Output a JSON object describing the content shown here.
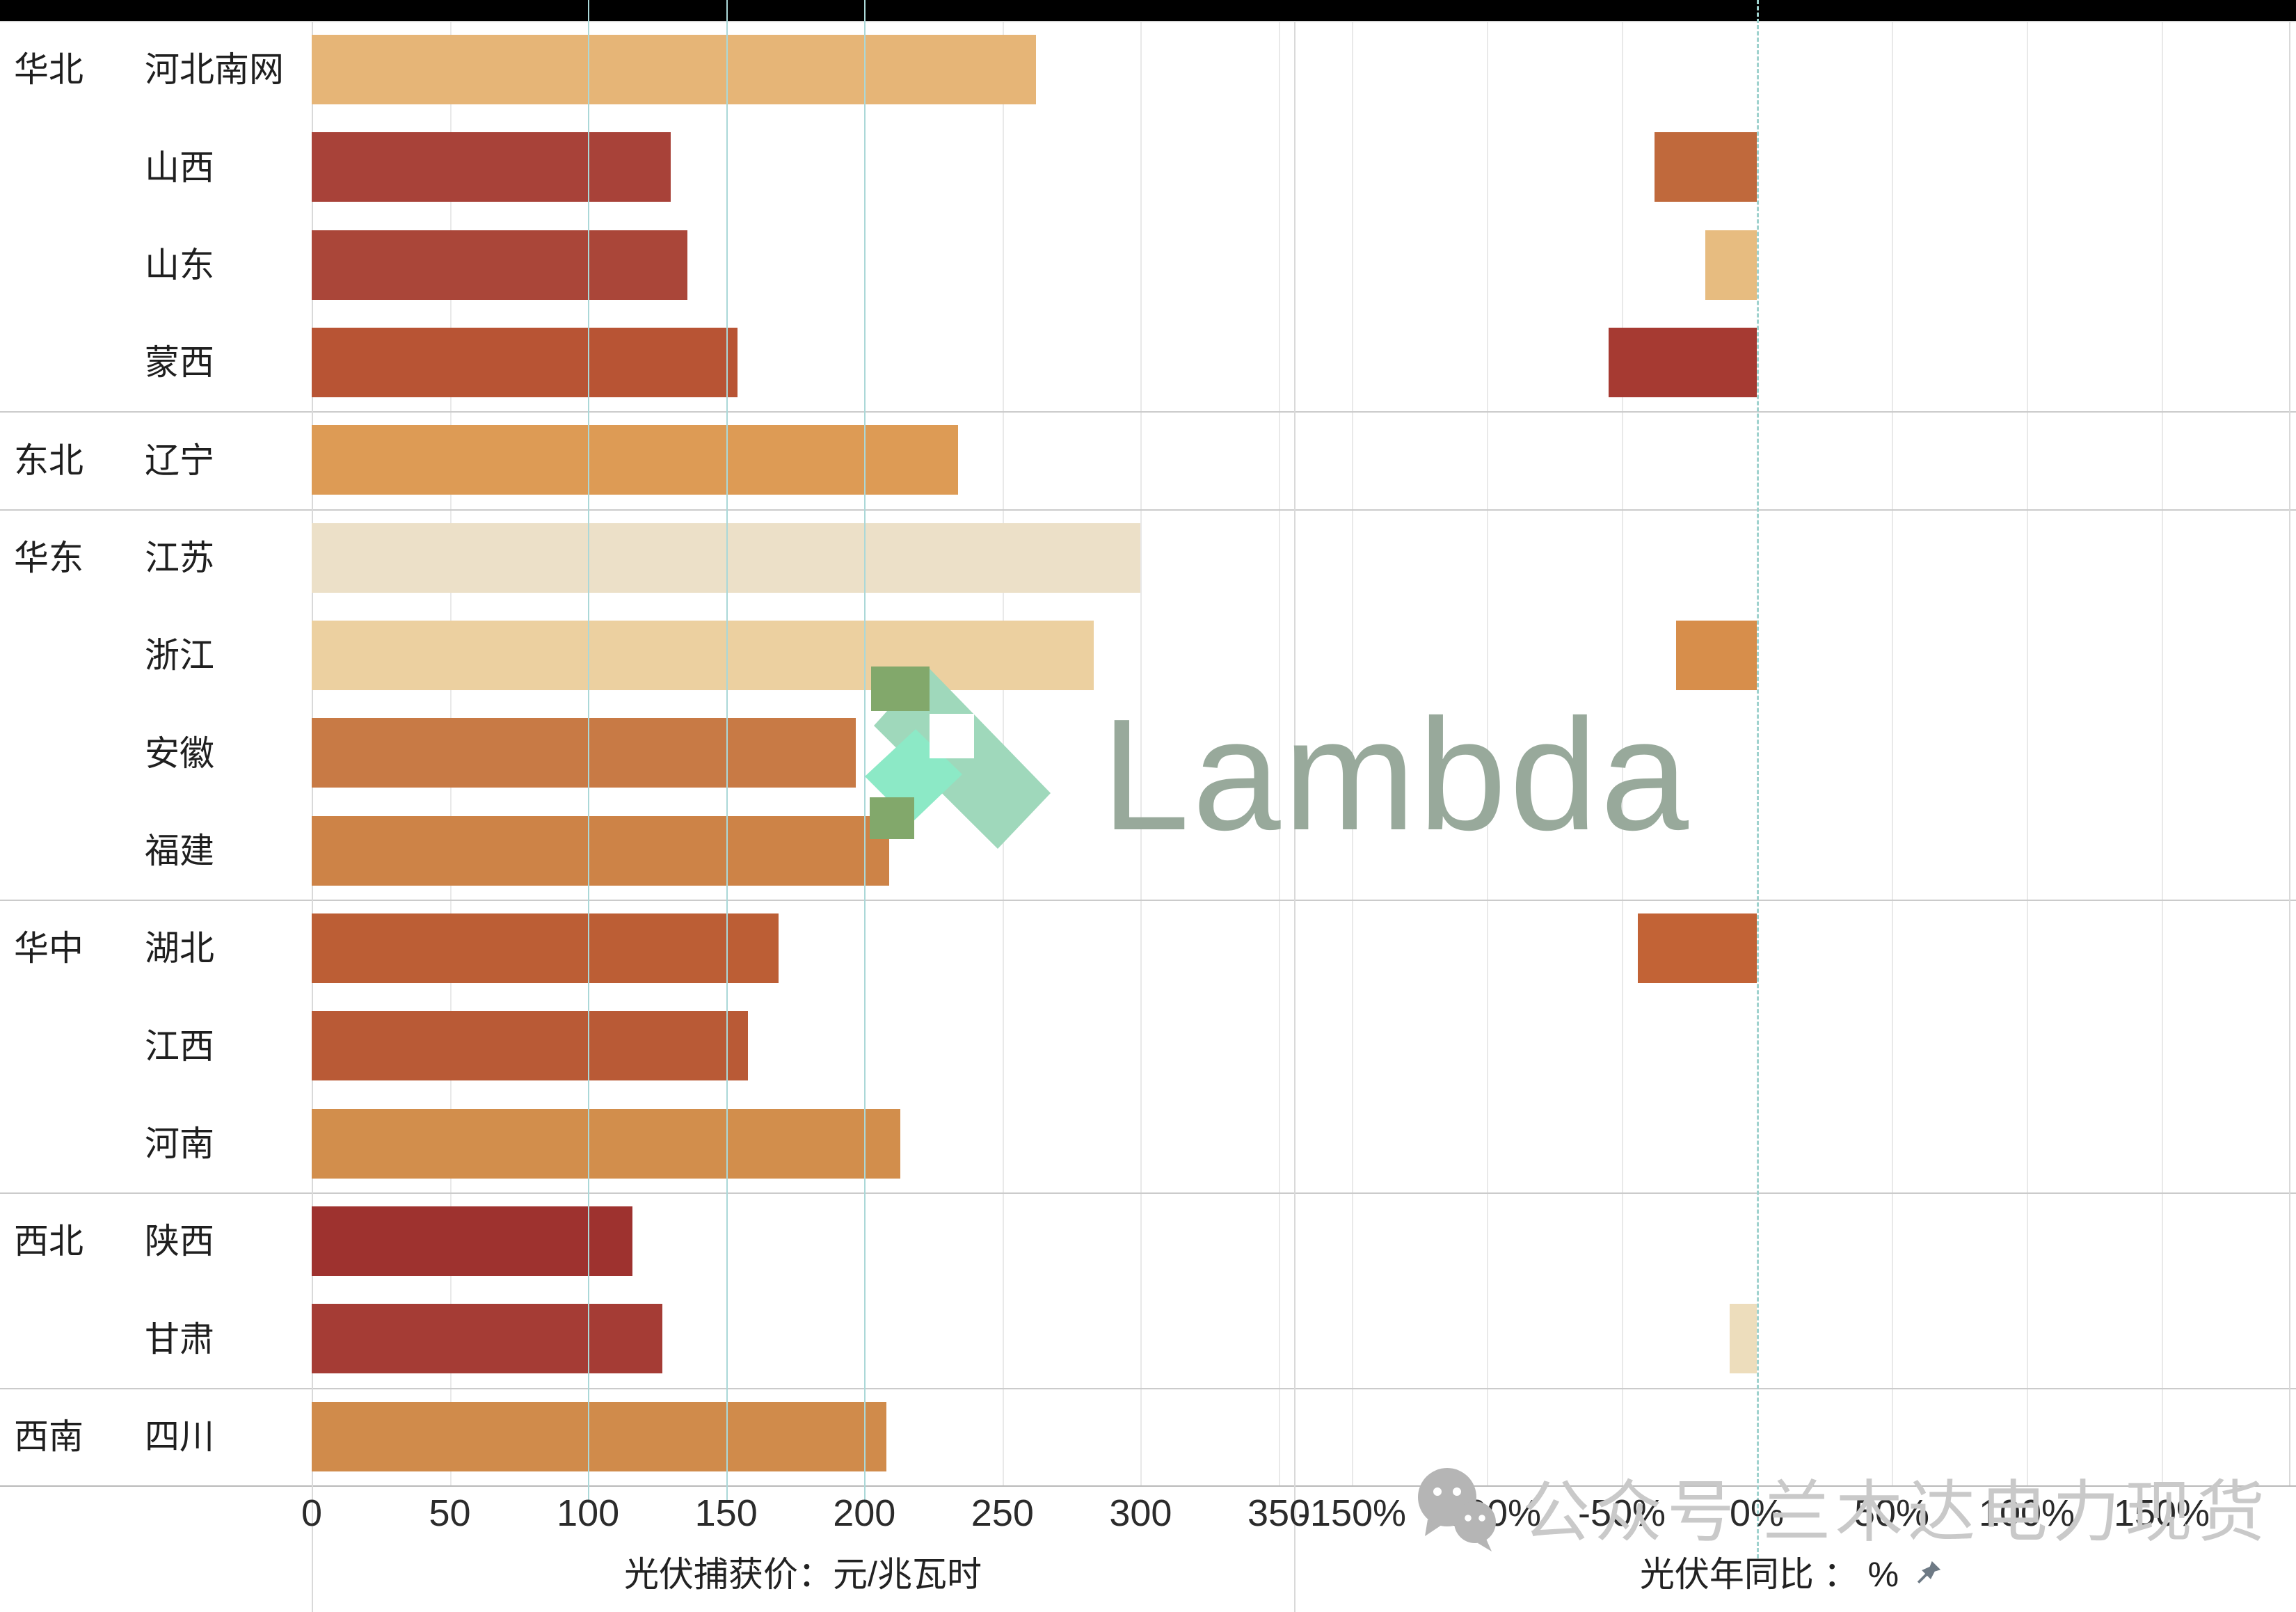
{
  "page": {
    "top_strip_color": "#000000",
    "background": "#ffffff"
  },
  "row_groups": [
    {
      "label": "华北",
      "start_row": 0
    },
    {
      "label": "东北",
      "start_row": 4
    },
    {
      "label": "华东",
      "start_row": 5
    },
    {
      "label": "华中",
      "start_row": 9
    },
    {
      "label": "西北",
      "start_row": 12
    },
    {
      "label": "西南",
      "start_row": 14
    }
  ],
  "chart_data": [
    {
      "type": "bar",
      "orientation": "horizontal",
      "title": "光伏捕获价：元/兆瓦时",
      "categories": [
        "河北南网",
        "山西",
        "山东",
        "蒙西",
        "辽宁",
        "江苏",
        "浙江",
        "安徽",
        "福建",
        "湖北",
        "江西",
        "河南",
        "陕西",
        "甘肃",
        "四川"
      ],
      "group_labels": [
        "华北",
        "华北",
        "华北",
        "华北",
        "东北",
        "华东",
        "华东",
        "华东",
        "华东",
        "华中",
        "华中",
        "华中",
        "西北",
        "西北",
        "西南"
      ],
      "values": [
        262,
        130,
        136,
        154,
        234,
        300,
        283,
        197,
        209,
        169,
        158,
        213,
        116,
        127,
        208
      ],
      "bar_colors": [
        "#e6b577",
        "#a84239",
        "#aa4639",
        "#b85434",
        "#dd9b55",
        "#ece0c8",
        "#ecd0a0",
        "#c87a45",
        "#cd8347",
        "#bc5e35",
        "#b95a36",
        "#d28e4c",
        "#9e322f",
        "#a53c35",
        "#d08b4b"
      ],
      "xlim": [
        0,
        356
      ],
      "ticks": [
        0,
        50,
        100,
        150,
        200,
        250,
        300,
        350
      ],
      "tick_labels": [
        "0",
        "50",
        "100",
        "150",
        "200",
        "250",
        "300",
        "350"
      ],
      "gridlines_gray": [
        50,
        250,
        300,
        350
      ],
      "gridlines_teal": [
        100,
        150,
        200
      ],
      "grid": true,
      "legend": false
    },
    {
      "type": "bar",
      "orientation": "horizontal",
      "title": "光伏年同比 ： %",
      "categories": [
        "河北南网",
        "山西",
        "山东",
        "蒙西",
        "辽宁",
        "江苏",
        "浙江",
        "安徽",
        "福建",
        "湖北",
        "江西",
        "河南",
        "陕西",
        "甘肃",
        "四川"
      ],
      "values": [
        null,
        -38,
        -19,
        -55,
        null,
        null,
        -30,
        null,
        null,
        -44,
        null,
        null,
        null,
        -10,
        null
      ],
      "bar_colors": [
        null,
        "#c0693c",
        "#e7bc80",
        "#a63a32",
        null,
        null,
        "#d78e4b",
        null,
        null,
        "#c26336",
        null,
        null,
        null,
        "#edddbc",
        null
      ],
      "xlim": [
        -171,
        197
      ],
      "ticks": [
        -150,
        -100,
        -50,
        0,
        50,
        100,
        150
      ],
      "tick_labels": [
        "-150%",
        "-100%",
        "-50%",
        "0%",
        "50%",
        "100%",
        "150%"
      ],
      "gridlines_gray": [
        -150,
        -100,
        -50,
        50,
        100,
        150
      ],
      "zero_reference_line": 0,
      "grid": true,
      "legend": false
    }
  ],
  "watermarks": {
    "logo_text": "Lambda",
    "logo_colors": {
      "ribbon": "#9fd8bb",
      "ribbon_bright": "#8ce9c6",
      "overlap": "#82a86b",
      "text": "#98a99b"
    },
    "wechat_text": "公众号 兰木达电力现货"
  },
  "reference_colors": {
    "teal_line": "#abd8d8",
    "gray_grid": "#e9e9e9",
    "divider": "#cbcbcb"
  }
}
